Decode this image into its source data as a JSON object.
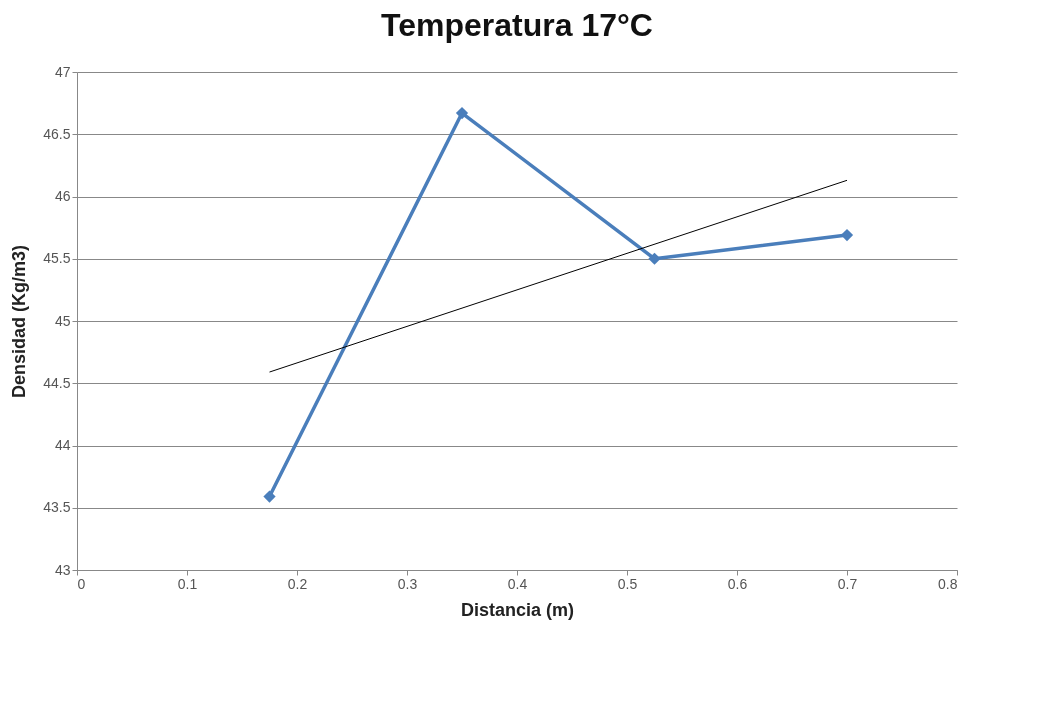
{
  "chart_data": {
    "type": "line",
    "title": "Temperatura 17°C",
    "xlabel": "Distancia (m)",
    "ylabel": "Densidad (Kg/m3)",
    "x": [
      0.175,
      0.35,
      0.525,
      0.7
    ],
    "series": [
      {
        "color": "#4a7ebb",
        "values": [
          43.59,
          46.67,
          45.5,
          45.69
        ],
        "marker": "diamond"
      },
      {
        "type": "line",
        "color": "#000000",
        "x": [
          0.175,
          0.7
        ],
        "values": [
          44.59,
          46.13
        ],
        "marker": "none"
      }
    ],
    "xlim": [
      0,
      0.8
    ],
    "xticks": [
      0,
      0.1,
      0.2,
      0.3,
      0.4,
      0.5,
      0.6,
      0.7,
      0.8
    ],
    "ylim": [
      43,
      47
    ],
    "yticks": [
      43,
      43.5,
      44,
      44.5,
      45,
      45.5,
      46,
      46.5,
      47
    ],
    "grid": "y"
  }
}
